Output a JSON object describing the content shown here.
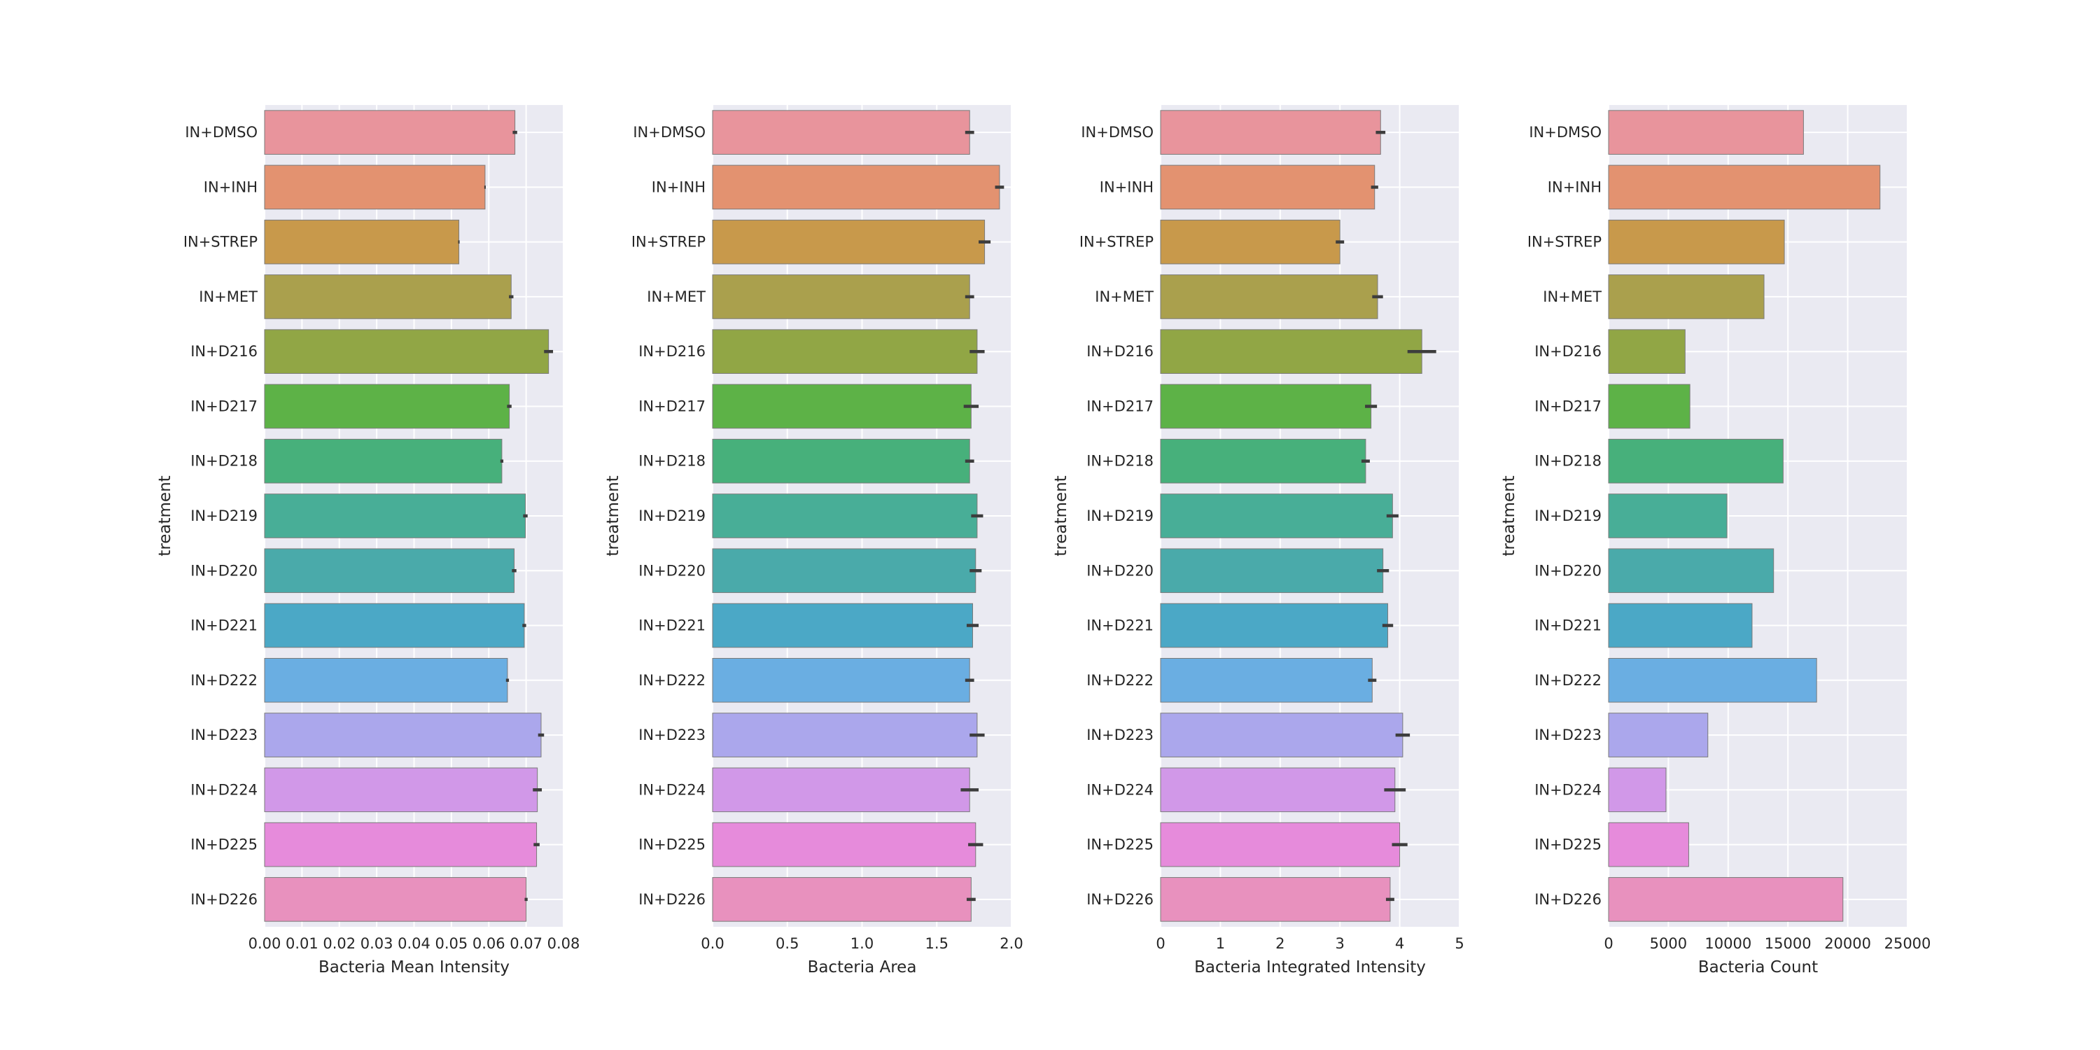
{
  "chart_data": [
    {
      "type": "bar",
      "orientation": "horizontal",
      "ylabel": "treatment",
      "xlabel": "Bacteria Mean Intensity",
      "categories": [
        "IN+DMSO",
        "IN+INH",
        "IN+STREP",
        "IN+MET",
        "IN+D216",
        "IN+D217",
        "IN+D218",
        "IN+D219",
        "IN+D220",
        "IN+D221",
        "IN+D222",
        "IN+D223",
        "IN+D224",
        "IN+D225",
        "IN+D226"
      ],
      "values": [
        0.067,
        0.059,
        0.052,
        0.066,
        0.076,
        0.0655,
        0.0635,
        0.0698,
        0.0668,
        0.0695,
        0.065,
        0.074,
        0.073,
        0.0728,
        0.07
      ],
      "errors": [
        0.0006,
        0.0002,
        0.0002,
        0.0006,
        0.0012,
        0.0006,
        0.0004,
        0.0006,
        0.0006,
        0.0005,
        0.0004,
        0.0008,
        0.0012,
        0.0008,
        0.0004
      ],
      "xlim": [
        0,
        0.08
      ],
      "xticks": [
        "0.00",
        "0.01",
        "0.02",
        "0.03",
        "0.04",
        "0.05",
        "0.06",
        "0.07",
        "0.08"
      ],
      "grid": true
    },
    {
      "type": "bar",
      "orientation": "horizontal",
      "ylabel": "treatment",
      "xlabel": "Bacteria Area",
      "categories": [
        "IN+DMSO",
        "IN+INH",
        "IN+STREP",
        "IN+MET",
        "IN+D216",
        "IN+D217",
        "IN+D218",
        "IN+D219",
        "IN+D220",
        "IN+D221",
        "IN+D222",
        "IN+D223",
        "IN+D224",
        "IN+D225",
        "IN+D226"
      ],
      "values": [
        1.72,
        1.92,
        1.82,
        1.72,
        1.77,
        1.73,
        1.72,
        1.77,
        1.76,
        1.74,
        1.72,
        1.77,
        1.72,
        1.76,
        1.73
      ],
      "errors": [
        0.03,
        0.03,
        0.04,
        0.03,
        0.05,
        0.05,
        0.03,
        0.04,
        0.04,
        0.04,
        0.03,
        0.05,
        0.06,
        0.05,
        0.03
      ],
      "xlim": [
        0,
        2.0
      ],
      "xticks": [
        "0.0",
        "0.5",
        "1.0",
        "1.5",
        "2.0"
      ],
      "grid": true
    },
    {
      "type": "bar",
      "orientation": "horizontal",
      "ylabel": "treatment",
      "xlabel": "Bacteria Integrated Intensity",
      "categories": [
        "IN+DMSO",
        "IN+INH",
        "IN+STREP",
        "IN+MET",
        "IN+D216",
        "IN+D217",
        "IN+D218",
        "IN+D219",
        "IN+D220",
        "IN+D221",
        "IN+D222",
        "IN+D223",
        "IN+D224",
        "IN+D225",
        "IN+D226"
      ],
      "values": [
        3.68,
        3.58,
        3.0,
        3.63,
        4.37,
        3.52,
        3.43,
        3.88,
        3.72,
        3.8,
        3.54,
        4.05,
        3.92,
        4.0,
        3.84
      ],
      "errors": [
        0.08,
        0.06,
        0.07,
        0.09,
        0.24,
        0.1,
        0.07,
        0.1,
        0.1,
        0.09,
        0.07,
        0.12,
        0.18,
        0.13,
        0.07
      ],
      "xlim": [
        0,
        5
      ],
      "xticks": [
        "0",
        "1",
        "2",
        "3",
        "4",
        "5"
      ],
      "grid": true
    },
    {
      "type": "bar",
      "orientation": "horizontal",
      "ylabel": "treatment",
      "xlabel": "Bacteria Count",
      "categories": [
        "IN+DMSO",
        "IN+INH",
        "IN+STREP",
        "IN+MET",
        "IN+D216",
        "IN+D217",
        "IN+D218",
        "IN+D219",
        "IN+D220",
        "IN+D221",
        "IN+D222",
        "IN+D223",
        "IN+D224",
        "IN+D225",
        "IN+D226"
      ],
      "values": [
        16300,
        22700,
        14700,
        13000,
        6400,
        6800,
        14600,
        9900,
        13800,
        12000,
        17400,
        8300,
        4800,
        6700,
        19600
      ],
      "xlim": [
        0,
        25000
      ],
      "xticks": [
        "0",
        "5000",
        "10000",
        "15000",
        "20000",
        "25000"
      ],
      "grid": true
    }
  ],
  "colors": {
    "bars": [
      "#e8949c",
      "#e39270",
      "#c8994b",
      "#aaa04d",
      "#91a645",
      "#5db247",
      "#47b07b",
      "#48ae97",
      "#4aaaaa",
      "#4ba8c6",
      "#6aaee2",
      "#aba7ec",
      "#d198e8",
      "#e68bdb",
      "#e891be"
    ],
    "axes_background": "#eaeaf2",
    "grid": "#ffffff",
    "text": "#262626",
    "errorbar": "#3d3d3d"
  }
}
